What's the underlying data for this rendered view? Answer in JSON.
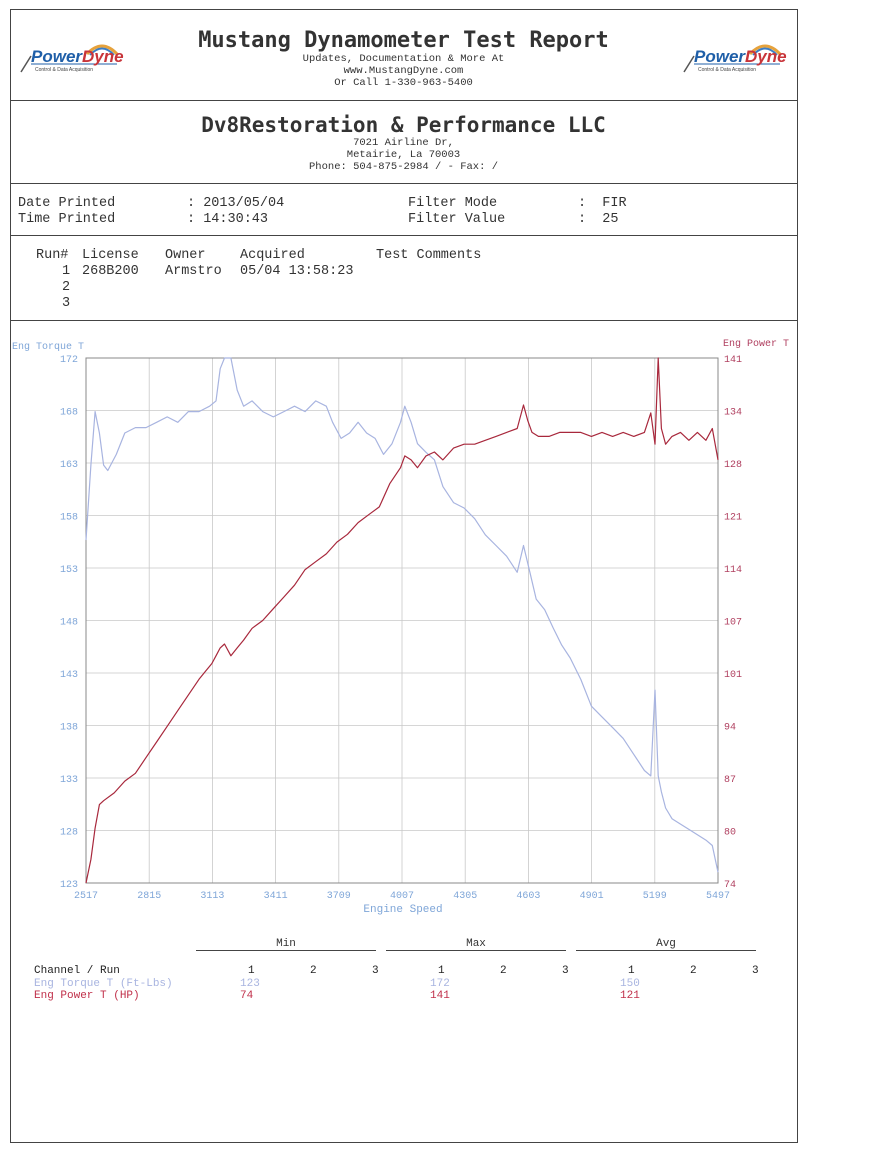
{
  "header": {
    "title": "Mustang Dynamometer Test Report",
    "line1": "Updates, Documentation & More At",
    "line2": "www.MustangDyne.com",
    "line3": "Or Call 1-330-963-5400",
    "logo_word_a": "Power",
    "logo_word_b": "Dyne",
    "logo_sub": "Control & Data Acquisition"
  },
  "shop": {
    "name": "Dv8Restoration & Performance LLC",
    "address1": "7021 Airline Dr,",
    "address2": "Metairie, La  70003",
    "phone": "Phone: 504-875-2984 /  - Fax:  /"
  },
  "print_info": {
    "date_label": "Date Printed",
    "date_value": ": 2013/05/04",
    "time_label": "Time Printed",
    "time_value": ": 14:30:43",
    "filter_mode_label": "Filter Mode",
    "filter_mode_value": ":  FIR",
    "filter_value_label": "Filter Value",
    "filter_value_value": ":  25"
  },
  "runs": {
    "headers": [
      "Run#",
      "License",
      "Owner",
      "Acquired",
      "Test Comments"
    ],
    "rows": [
      {
        "run": "1",
        "license": "268B200",
        "owner": "Armstro",
        "acquired": "05/04 13:58:23",
        "comments": ""
      },
      {
        "run": "2",
        "license": "",
        "owner": "",
        "acquired": "",
        "comments": ""
      },
      {
        "run": "3",
        "license": "",
        "owner": "",
        "acquired": "",
        "comments": ""
      }
    ]
  },
  "chart_data": {
    "type": "line",
    "xlabel": "Engine Speed",
    "x_ticks": [
      "2517",
      "2815",
      "3113",
      "3411",
      "3709",
      "4007",
      "4305",
      "4603",
      "4901",
      "5199",
      "5497"
    ],
    "xlim": [
      2517,
      5497
    ],
    "left_axis": {
      "label": "Eng Torque T",
      "ticks": [
        "172",
        "168",
        "163",
        "158",
        "153",
        "148",
        "143",
        "138",
        "133",
        "128",
        "123"
      ],
      "range": [
        123,
        172
      ]
    },
    "right_axis": {
      "label": "Eng Power T",
      "ticks": [
        "141",
        "134",
        "128",
        "121",
        "114",
        "107",
        "101",
        "94",
        "87",
        "80",
        "74"
      ],
      "range": [
        74,
        141
      ]
    },
    "grid": true,
    "series": [
      {
        "name": "Eng Torque T",
        "axis": "left",
        "color": "#a8b4e0",
        "x": [
          2517,
          2540,
          2560,
          2580,
          2600,
          2620,
          2660,
          2700,
          2750,
          2800,
          2850,
          2900,
          2950,
          3000,
          3050,
          3100,
          3130,
          3150,
          3170,
          3200,
          3230,
          3260,
          3300,
          3350,
          3400,
          3450,
          3500,
          3550,
          3600,
          3650,
          3680,
          3720,
          3760,
          3800,
          3840,
          3880,
          3920,
          3960,
          4000,
          4020,
          4050,
          4080,
          4120,
          4160,
          4200,
          4250,
          4300,
          4350,
          4400,
          4450,
          4500,
          4550,
          4580,
          4610,
          4640,
          4680,
          4720,
          4760,
          4800,
          4850,
          4900,
          4950,
          5000,
          5050,
          5100,
          5150,
          5180,
          5200,
          5215,
          5230,
          5250,
          5280,
          5320,
          5360,
          5400,
          5440,
          5470,
          5497
        ],
        "y": [
          155,
          162,
          167,
          165,
          162,
          161.5,
          163,
          165,
          165.5,
          165.5,
          166,
          166.5,
          166,
          167,
          167,
          167.5,
          168,
          171,
          172,
          172,
          169,
          167.5,
          168,
          167,
          166.5,
          167,
          167.5,
          167,
          168,
          167.5,
          166,
          164.5,
          165,
          166,
          165,
          164.5,
          163,
          164,
          166,
          167.5,
          166,
          164,
          163.2,
          162.5,
          160,
          158.5,
          158,
          157,
          155.5,
          154.5,
          153.5,
          152,
          154.5,
          152,
          149.5,
          148.5,
          146.8,
          145.2,
          144,
          142,
          139.5,
          138.5,
          137.5,
          136.5,
          135,
          133.5,
          133,
          141,
          133,
          131.5,
          130,
          129,
          128.5,
          128,
          127.5,
          127,
          126.5,
          124
        ]
      },
      {
        "name": "Eng Power T",
        "axis": "right",
        "color": "#a8283c",
        "x": [
          2517,
          2540,
          2560,
          2580,
          2600,
          2650,
          2700,
          2750,
          2800,
          2850,
          2900,
          2950,
          3000,
          3050,
          3080,
          3110,
          3130,
          3150,
          3170,
          3200,
          3230,
          3260,
          3300,
          3350,
          3400,
          3450,
          3500,
          3550,
          3600,
          3650,
          3700,
          3750,
          3800,
          3850,
          3900,
          3950,
          4000,
          4020,
          4050,
          4080,
          4120,
          4160,
          4200,
          4250,
          4300,
          4350,
          4400,
          4450,
          4500,
          4550,
          4580,
          4600,
          4620,
          4650,
          4700,
          4750,
          4800,
          4850,
          4900,
          4950,
          5000,
          5050,
          5100,
          5150,
          5180,
          5200,
          5215,
          5230,
          5250,
          5280,
          5320,
          5360,
          5400,
          5440,
          5470,
          5497
        ],
        "y": [
          74,
          77,
          81,
          84,
          84.5,
          85.5,
          87,
          88,
          90,
          92,
          94,
          96,
          98,
          100,
          101,
          102,
          103,
          104,
          104.5,
          103,
          104,
          105,
          106.5,
          107.5,
          109,
          110.5,
          112,
          114,
          115,
          116,
          117.5,
          118.5,
          120,
          121,
          122,
          125,
          127,
          128.5,
          128,
          127,
          128.5,
          129,
          128,
          129.5,
          130,
          130,
          130.5,
          131,
          131.5,
          132,
          135,
          133,
          131.5,
          131,
          131,
          131.5,
          131.5,
          131.5,
          131,
          131.5,
          131,
          131.5,
          131,
          131.5,
          134,
          130,
          141,
          132,
          130,
          131,
          131.5,
          130.5,
          131.5,
          130.5,
          132,
          128
        ]
      }
    ],
    "noise_note": ""
  },
  "stats": {
    "group_headers": [
      "Min",
      "Max",
      "Avg"
    ],
    "run_headers": [
      "1",
      "2",
      "3"
    ],
    "channel_label": "Channel / Run",
    "rows": [
      {
        "channel": "Eng Torque T (Ft-Lbs)",
        "color": "#a8b4e0",
        "min": [
          "123",
          "",
          ""
        ],
        "max": [
          "172",
          "",
          ""
        ],
        "avg": [
          "150",
          "",
          ""
        ]
      },
      {
        "channel": "Eng Power T (HP)",
        "color": "#c0304a",
        "min": [
          "74",
          "",
          ""
        ],
        "max": [
          "141",
          "",
          ""
        ],
        "avg": [
          "121",
          "",
          ""
        ]
      }
    ]
  },
  "colors": {
    "torque_axis": "#7fa6d8",
    "power_axis": "#b04060",
    "grid": "#c8c8c8"
  }
}
